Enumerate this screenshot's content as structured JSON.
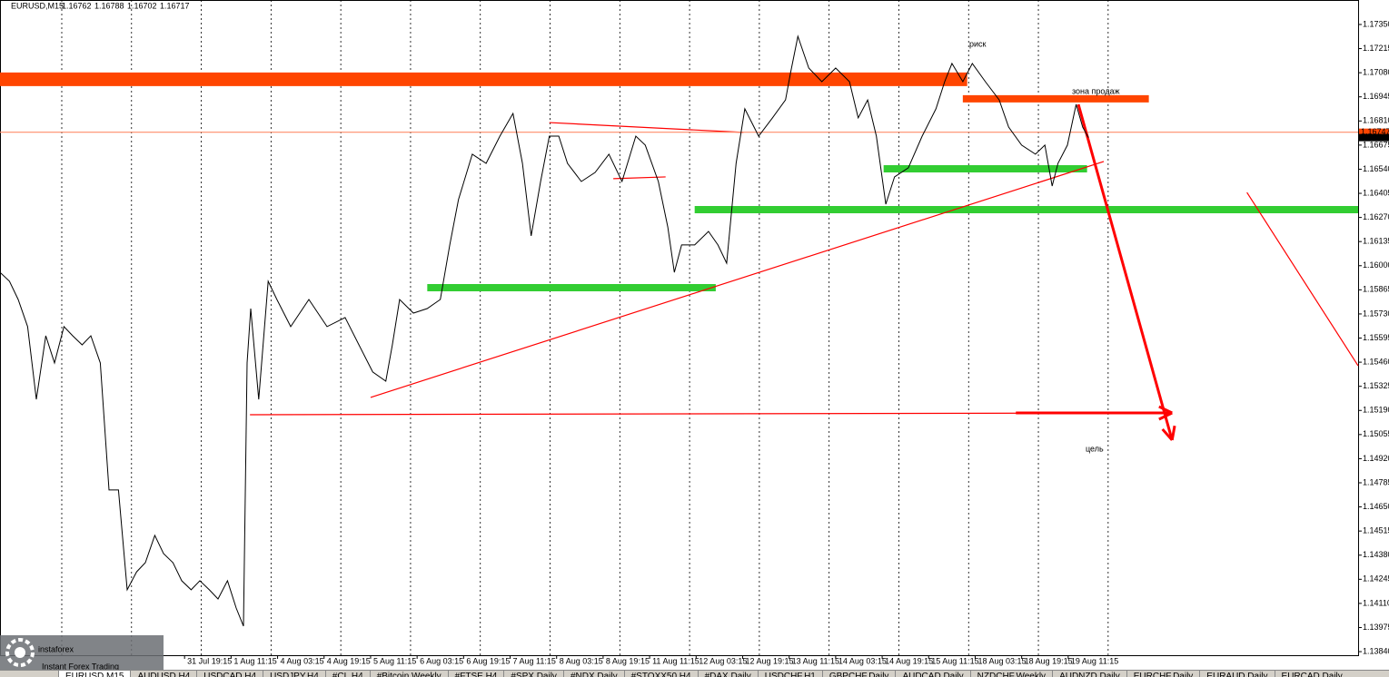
{
  "chart_data": {
    "type": "line",
    "symbol": "EURUSD,M15",
    "ohlc": [
      1.16762,
      1.16788,
      1.16702,
      1.16717
    ],
    "x": [
      0,
      13,
      25,
      38,
      50,
      63,
      75,
      88,
      100,
      113,
      125,
      138,
      150,
      163,
      175,
      188,
      200,
      213,
      225,
      238,
      250,
      263,
      275,
      288,
      300,
      313,
      325,
      335,
      340,
      345,
      356,
      369,
      381,
      400,
      425,
      450,
      475,
      494,
      513,
      531,
      540,
      550,
      569,
      588,
      606,
      619,
      631,
      650,
      669,
      688,
      706,
      719,
      731,
      744,
      756,
      769,
      781,
      800,
      819,
      838,
      856,
      875,
      888,
      906,
      919,
      928,
      938,
      956,
      975,
      988,
      1000,
      1013,
      1025,
      1044,
      1063,
      1081,
      1088,
      1098,
      1113,
      1131,
      1150,
      1169,
      1181,
      1194,
      1206,
      1219,
      1231,
      1250,
      1269,
      1288,
      1300,
      1310,
      1325,
      1338,
      1356,
      1375,
      1388,
      1406,
      1425,
      1438,
      1448,
      1456,
      1469,
      1481,
      1490,
      1498
    ],
    "series": [
      {
        "color": "#000000",
        "values": [
          1.15963,
          1.15913,
          1.15811,
          1.15659,
          1.15252,
          1.15608,
          1.15456,
          1.15659,
          1.15608,
          1.15557,
          1.15608,
          1.15456,
          1.14745,
          1.14745,
          1.14186,
          1.14287,
          1.14338,
          1.14491,
          1.14389,
          1.14338,
          1.14237,
          1.14186,
          1.14237,
          1.14186,
          1.14135,
          1.14237,
          1.14084,
          1.13983,
          1.15456,
          1.1576,
          1.15252,
          1.15913,
          1.15811,
          1.15659,
          1.15811,
          1.15659,
          1.1571,
          1.15557,
          1.15405,
          1.15354,
          1.15557,
          1.15811,
          1.15735,
          1.1576,
          1.15811,
          1.16116,
          1.1637,
          1.16624,
          1.16573,
          1.16725,
          1.16852,
          1.16573,
          1.16167,
          1.16471,
          1.16725,
          1.16725,
          1.16573,
          1.16471,
          1.16522,
          1.16624,
          1.16471,
          1.16725,
          1.16675,
          1.16471,
          1.16217,
          1.15963,
          1.16116,
          1.16116,
          1.16192,
          1.16116,
          1.16014,
          1.16573,
          1.16878,
          1.16725,
          1.16827,
          1.16928,
          1.17081,
          1.17284,
          1.17106,
          1.1703,
          1.17106,
          1.1703,
          1.16827,
          1.16928,
          1.16725,
          1.16344,
          1.16497,
          1.16548,
          1.16725,
          1.16878,
          1.1703,
          1.17132,
          1.1703,
          1.17132,
          1.1703,
          1.16928,
          1.16776,
          1.16675,
          1.16624,
          1.16675,
          1.16446,
          1.16573,
          1.16675,
          1.16903,
          1.16776,
          1.16717
        ]
      }
    ],
    "xlim": [
      0,
      1869
    ],
    "ylim": [
      1.1382,
      1.17487
    ],
    "yticks": [
      {
        "value": 1.1735,
        "label": "1.17350"
      },
      1.17215,
      {
        "value": 1.1708,
        "label": "1.17080"
      },
      1.16945,
      {
        "value": 1.1681,
        "label": "1.16810"
      },
      1.16675,
      {
        "value": 1.1654,
        "label": "1.16540"
      },
      1.16405,
      {
        "value": 1.1627,
        "label": "1.16270"
      },
      1.16135,
      {
        "value": 1.16,
        "label": "1.16000"
      },
      1.15865,
      {
        "value": 1.1573,
        "label": "1.15730"
      },
      1.15595,
      {
        "value": 1.1546,
        "label": "1.15460"
      },
      1.15325,
      {
        "value": 1.1519,
        "label": "1.15190"
      },
      1.15055,
      {
        "value": 1.1492,
        "label": "1.14920"
      },
      1.14785,
      {
        "value": 1.1465,
        "label": "1.14650"
      },
      1.14515,
      {
        "value": 1.1438,
        "label": "1.14380"
      },
      1.14245,
      {
        "value": 1.1411,
        "label": "1.14110"
      },
      1.13975,
      {
        "value": 1.1384,
        "label": "1.13840"
      }
    ],
    "xticks": [
      {
        "value": 254,
        "label": "31 Jul 19:15"
      },
      {
        "value": 318,
        "label": "1 Aug 11:15"
      },
      {
        "value": 382,
        "label": "4 Aug 03:15"
      },
      {
        "value": 446,
        "label": "4 Aug 19:15"
      },
      {
        "value": 510,
        "label": "5 Aug 11:15"
      },
      {
        "value": 574,
        "label": "6 Aug 03:15"
      },
      {
        "value": 638,
        "label": "6 Aug 19:15"
      },
      {
        "value": 702,
        "label": "7 Aug 11:15"
      },
      {
        "value": 766,
        "label": "8 Aug 03:15"
      },
      {
        "value": 830,
        "label": "8 Aug 19:15"
      },
      {
        "value": 894,
        "label": "11 Aug 11:15"
      },
      {
        "value": 958,
        "label": "12 Aug 03:15"
      },
      {
        "value": 1022,
        "label": "12 Aug 19:15"
      },
      {
        "value": 1086,
        "label": "13 Aug 11:15"
      },
      {
        "value": 1150,
        "label": "14 Aug 03:15"
      },
      {
        "value": 1214,
        "label": "14 Aug 19:15"
      },
      {
        "value": 1278,
        "label": "15 Aug 11:15"
      },
      {
        "value": 1342,
        "label": "18 Aug 03:15"
      },
      {
        "value": 1406,
        "label": "18 Aug 19:15"
      },
      {
        "value": 1470,
        "label": "19 Aug 11:15"
      }
    ],
    "xgrid": [
      85,
      181,
      277,
      373,
      469,
      565,
      661,
      757,
      853,
      949,
      1045,
      1141,
      1237,
      1333,
      1429,
      1525
    ],
    "grid": true,
    "drawings": [
      {
        "style": "zone",
        "color": "#ff4500",
        "x": [
          0,
          1331
        ],
        "y": [
          1.17043,
          1.17043
        ]
      },
      {
        "style": "level",
        "color": "#ff4500",
        "x": [
          1325,
          1581
        ],
        "y": [
          1.16934,
          1.16934
        ]
      },
      {
        "style": "level",
        "color": "#32cd32",
        "x": [
          588,
          985
        ],
        "y": [
          1.15877,
          1.15877
        ]
      },
      {
        "style": "level",
        "color": "#32cd32",
        "x": [
          956,
          1869
        ],
        "y": [
          1.16314,
          1.16314
        ]
      },
      {
        "style": "level",
        "color": "#32cd32",
        "x": [
          1216,
          1496
        ],
        "y": [
          1.16542,
          1.16542
        ]
      },
      {
        "style": "thin",
        "color": "#ff0000",
        "x": [
          510,
          1519
        ],
        "y": [
          1.15263,
          1.16583
        ]
      },
      {
        "style": "thin",
        "color": "#ff0000",
        "x": [
          756,
          1023
        ],
        "y": [
          1.16801,
          1.16746
        ]
      },
      {
        "style": "thin",
        "color": "#ff0000",
        "x": [
          844,
          916
        ],
        "y": [
          1.16487,
          1.16497
        ]
      },
      {
        "style": "thin",
        "color": "#ff0000",
        "x": [
          344,
          1600
        ],
        "y": [
          1.15166,
          1.15176
        ]
      },
      {
        "style": "thin",
        "color": "#ff0000",
        "x": [
          1716,
          1869
        ],
        "y": [
          1.1641,
          1.1544
        ]
      },
      {
        "style": "thin",
        "color": "#ff8c69",
        "x": [
          0,
          1869
        ],
        "y": [
          1.16747,
          1.16747
        ]
      },
      {
        "style": "arrow",
        "color": "#ff0000",
        "x": [
          1484,
          1613
        ],
        "y": [
          1.16903,
          1.15024
        ]
      },
      {
        "style": "arrow",
        "color": "#ff0000",
        "x": [
          1398,
          1613
        ],
        "y": [
          1.15176,
          1.15176
        ]
      }
    ],
    "annotations": [
      {
        "text": "риск",
        "color": "#ff0000"
      },
      {
        "text": "зона продаж",
        "color": "#ff0000"
      },
      {
        "text": "цель",
        "color": "#ff0000"
      }
    ],
    "price_tags": [
      {
        "value": 1.16747,
        "color": "#ff4500"
      },
      {
        "value": 1.16717,
        "color": "#000000"
      }
    ],
    "brand": {
      "name": "instaforex",
      "slogan": "Instant Forex Trading"
    },
    "tabs": [
      "EURUSD,M15",
      "AUDUSD,H4",
      "USDCAD,H4",
      "USDJPY,H4",
      "#CL,H4",
      "#Bitcoin,Weekly",
      "#FTSE,H4",
      "#SPX,Daily",
      "#NDX,Daily",
      "#STOXX50,H4",
      "#DAX,Daily",
      "USDCHF,H1",
      "GBPCHF,Daily",
      "AUDCAD,Daily",
      "NZDCHF,Weekly",
      "AUDNZD,Daily",
      "EURCHF,Daily",
      "EURAUD,Daily",
      "EURCAD,Daily"
    ]
  }
}
